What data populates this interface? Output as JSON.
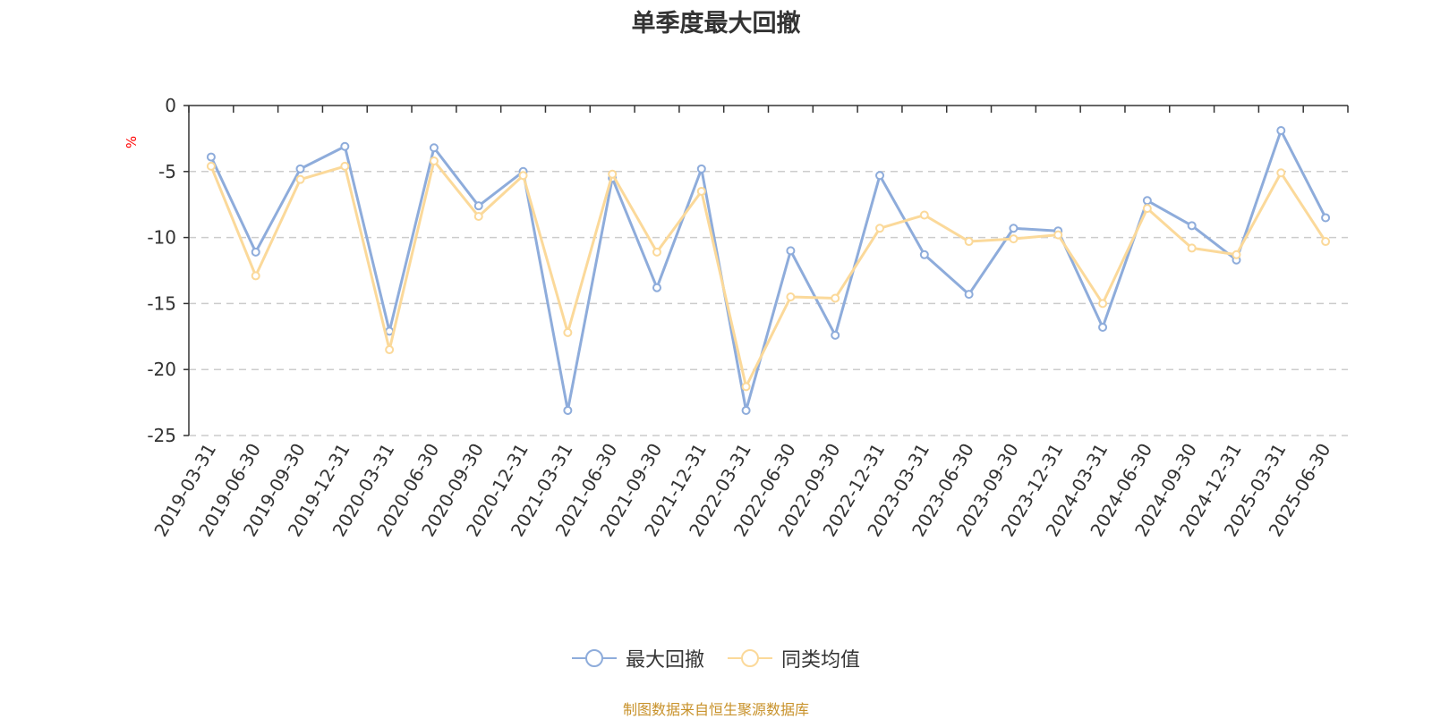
{
  "chart_data": {
    "type": "line",
    "title": "单季度最大回撤",
    "ylabel": "%",
    "ylim": [
      -25,
      0
    ],
    "yticks": [
      0,
      -5,
      -10,
      -15,
      -20,
      -25
    ],
    "grid": true,
    "legend_position": "bottom-center",
    "categories": [
      "2019-03-31",
      "2019-06-30",
      "2019-09-30",
      "2019-12-31",
      "2020-03-31",
      "2020-06-30",
      "2020-09-30",
      "2020-12-31",
      "2021-03-31",
      "2021-06-30",
      "2021-09-30",
      "2021-12-31",
      "2022-03-31",
      "2022-06-30",
      "2022-09-30",
      "2022-12-31",
      "2023-03-31",
      "2023-06-30",
      "2023-09-30",
      "2023-12-31",
      "2024-03-31",
      "2024-06-30",
      "2024-09-30",
      "2024-12-31",
      "2025-03-31",
      "2025-06-30"
    ],
    "series": [
      {
        "name": "最大回撤",
        "color": "#8eacdb",
        "values": [
          -3.9,
          -11.1,
          -4.8,
          -3.1,
          -17.1,
          -3.2,
          -7.6,
          -5.0,
          -23.1,
          -5.5,
          -13.8,
          -4.8,
          -23.1,
          -11.0,
          -17.4,
          -5.3,
          -11.3,
          -14.3,
          -9.3,
          -9.5,
          -16.8,
          -7.2,
          -9.1,
          -11.7,
          -1.9,
          -8.5
        ]
      },
      {
        "name": "同类均值",
        "color": "#fbd99a",
        "values": [
          -4.6,
          -12.9,
          -5.6,
          -4.6,
          -18.5,
          -4.2,
          -8.4,
          -5.3,
          -17.2,
          -5.2,
          -11.1,
          -6.5,
          -21.3,
          -14.5,
          -14.6,
          -9.3,
          -8.3,
          -10.3,
          -10.1,
          -9.8,
          -15.0,
          -7.8,
          -10.8,
          -11.3,
          -5.1,
          -10.3
        ]
      }
    ]
  },
  "unit_label": "%",
  "source_text": "制图数据来自恒生聚源数据库"
}
